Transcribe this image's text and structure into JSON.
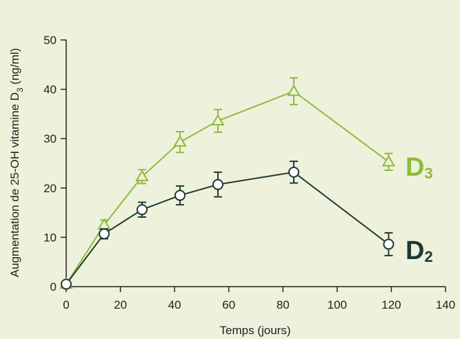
{
  "colors": {
    "background": "#eef1dc",
    "axis": "#222222",
    "d3": "#8dbb3c",
    "d2": "#1f3a34"
  },
  "chart_data": {
    "type": "line",
    "xlabel": "Temps (jours)",
    "ylabel": {
      "main": "Augmentation de 25-OH vitamine D",
      "sub": "3",
      "unit": " (ng/ml)"
    },
    "xlim": [
      0,
      140
    ],
    "ylim": [
      0,
      50
    ],
    "xticks": [
      0,
      20,
      40,
      60,
      80,
      100,
      120,
      140
    ],
    "yticks": [
      0,
      10,
      20,
      30,
      40,
      50
    ],
    "grid": false,
    "legend": "inline labels at right end of each series",
    "series": [
      {
        "name": "D3",
        "label_main": "D",
        "label_sub": "3",
        "color": "#8dbb3c",
        "marker": "triangle-open",
        "x": [
          0,
          14,
          28,
          42,
          56,
          84,
          119
        ],
        "y": [
          0.5,
          12.5,
          22.3,
          29.3,
          33.6,
          39.6,
          25.3
        ],
        "err": [
          0,
          1.0,
          1.4,
          2.1,
          2.3,
          2.7,
          1.7
        ]
      },
      {
        "name": "D2",
        "label_main": "D",
        "label_sub": "2",
        "color": "#1f3a34",
        "marker": "circle-open",
        "x": [
          0,
          14,
          28,
          42,
          56,
          84,
          119
        ],
        "y": [
          0.5,
          10.7,
          15.6,
          18.5,
          20.7,
          23.2,
          8.6
        ],
        "err": [
          0,
          1.0,
          1.5,
          1.9,
          2.5,
          2.2,
          2.3
        ]
      }
    ]
  }
}
